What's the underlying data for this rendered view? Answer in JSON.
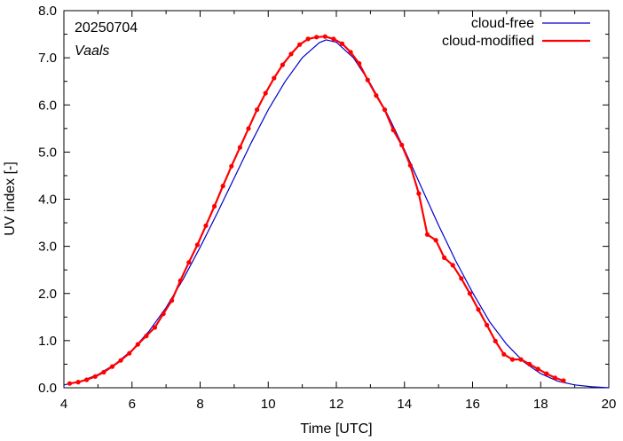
{
  "chart_data": {
    "type": "line",
    "title": "",
    "xlabel": "Time  [UTC]",
    "ylabel": "UV index  [-]",
    "xlim": [
      4,
      20
    ],
    "ylim": [
      0,
      8
    ],
    "xticks": [
      4,
      6,
      8,
      10,
      12,
      14,
      16,
      18,
      20
    ],
    "yticks": [
      "0.0",
      "1.0",
      "2.0",
      "3.0",
      "4.0",
      "5.0",
      "6.0",
      "7.0",
      "8.0"
    ],
    "grid": false,
    "legend_position": "top-right",
    "annotations": [
      {
        "text": "20250704",
        "style": "normal"
      },
      {
        "text": "Vaals",
        "style": "italic"
      }
    ],
    "series": [
      {
        "name": "cloud-free",
        "color": "#0000cc",
        "markers": false,
        "x": [
          4.0,
          4.5,
          5.0,
          5.5,
          6.0,
          6.5,
          7.0,
          7.5,
          8.0,
          8.5,
          9.0,
          9.5,
          10.0,
          10.5,
          11.0,
          11.5,
          11.7,
          12.0,
          12.5,
          13.0,
          13.5,
          14.0,
          14.5,
          15.0,
          15.5,
          16.0,
          16.5,
          17.0,
          17.5,
          18.0,
          18.5,
          19.0,
          19.5,
          20.0
        ],
        "y": [
          0.06,
          0.14,
          0.28,
          0.5,
          0.8,
          1.2,
          1.7,
          2.3,
          2.98,
          3.7,
          4.45,
          5.2,
          5.9,
          6.5,
          7.0,
          7.32,
          7.38,
          7.33,
          7.0,
          6.45,
          5.8,
          5.05,
          4.25,
          3.45,
          2.7,
          2.02,
          1.4,
          0.92,
          0.55,
          0.3,
          0.14,
          0.06,
          0.02,
          0.0
        ]
      },
      {
        "name": "cloud-modified",
        "color": "#ff0000",
        "markers": true,
        "x": [
          4.17,
          4.42,
          4.67,
          4.92,
          5.17,
          5.42,
          5.67,
          5.92,
          6.17,
          6.42,
          6.67,
          6.92,
          7.17,
          7.42,
          7.67,
          7.92,
          8.17,
          8.42,
          8.67,
          8.92,
          9.17,
          9.42,
          9.67,
          9.92,
          10.17,
          10.42,
          10.67,
          10.92,
          11.17,
          11.42,
          11.67,
          11.92,
          12.17,
          12.42,
          12.67,
          12.92,
          13.17,
          13.42,
          13.67,
          13.92,
          14.17,
          14.42,
          14.67,
          14.92,
          15.17,
          15.42,
          15.67,
          15.92,
          16.17,
          16.42,
          16.67,
          16.92,
          17.17,
          17.42,
          17.67,
          17.92,
          18.17,
          18.42,
          18.67
        ],
        "y": [
          0.09,
          0.12,
          0.17,
          0.24,
          0.33,
          0.45,
          0.58,
          0.73,
          0.92,
          1.1,
          1.28,
          1.57,
          1.85,
          2.27,
          2.66,
          3.03,
          3.44,
          3.85,
          4.28,
          4.7,
          5.1,
          5.5,
          5.9,
          6.25,
          6.57,
          6.85,
          7.08,
          7.28,
          7.4,
          7.44,
          7.45,
          7.4,
          7.3,
          7.12,
          6.88,
          6.53,
          6.2,
          5.9,
          5.47,
          5.15,
          4.72,
          4.12,
          3.25,
          3.13,
          2.76,
          2.6,
          2.32,
          2.0,
          1.66,
          1.33,
          0.99,
          0.71,
          0.6,
          0.6,
          0.5,
          0.4,
          0.3,
          0.21,
          0.15
        ]
      }
    ]
  }
}
